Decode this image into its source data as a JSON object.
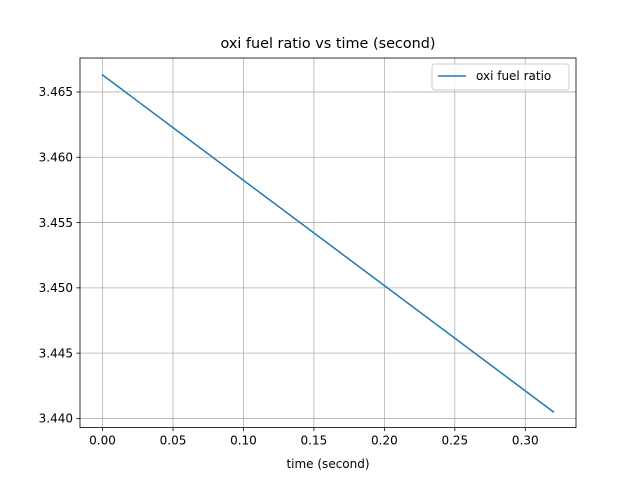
{
  "chart_data": {
    "type": "line",
    "title": "oxi fuel ratio vs time (second)",
    "xlabel": "time (second)",
    "ylabel": "",
    "xlim": [
      -0.016,
      0.336
    ],
    "ylim": [
      3.4393,
      3.4676
    ],
    "xticks": [
      0.0,
      0.05,
      0.1,
      0.15,
      0.2,
      0.25,
      0.3
    ],
    "xtick_labels": [
      "0.00",
      "0.05",
      "0.10",
      "0.15",
      "0.20",
      "0.25",
      "0.30"
    ],
    "yticks": [
      3.44,
      3.445,
      3.45,
      3.455,
      3.46,
      3.465
    ],
    "ytick_labels": [
      "3.440",
      "3.445",
      "3.450",
      "3.455",
      "3.460",
      "3.465"
    ],
    "grid": true,
    "legend_position": "top-right",
    "series": [
      {
        "name": "oxi fuel ratio",
        "color": "#1f77b4",
        "x": [
          0.0,
          0.32
        ],
        "y": [
          3.4663,
          3.4405
        ]
      }
    ]
  }
}
